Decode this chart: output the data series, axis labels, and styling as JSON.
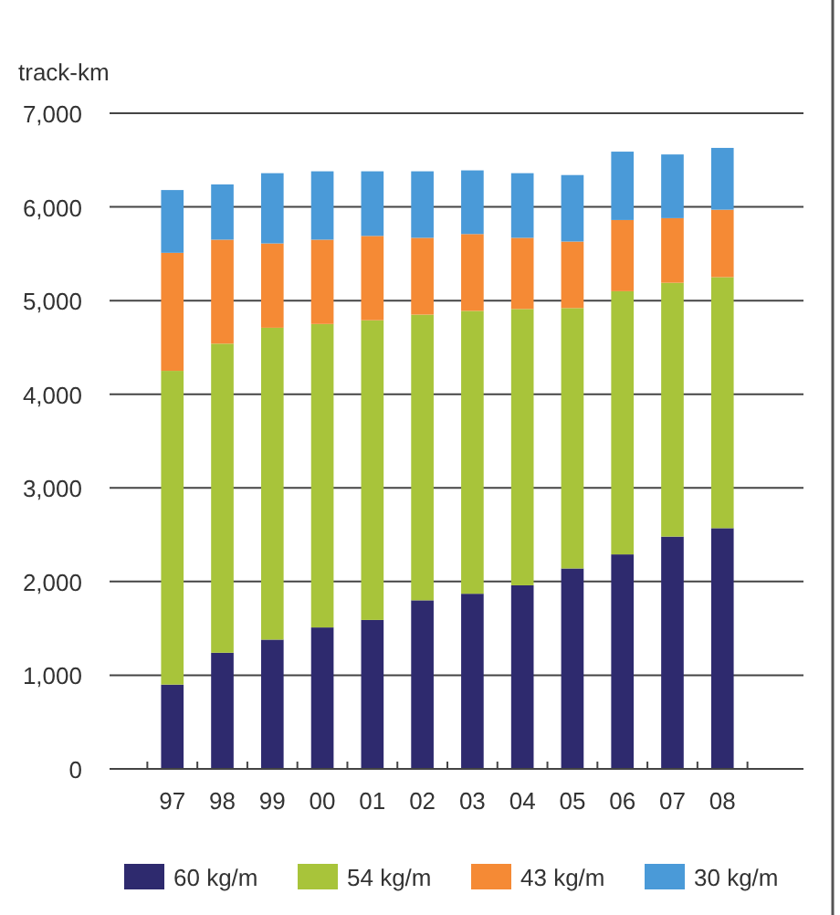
{
  "chart_data": {
    "type": "bar",
    "stacked": true,
    "ylabel": "track-km",
    "categories": [
      "97",
      "98",
      "99",
      "00",
      "01",
      "02",
      "03",
      "04",
      "05",
      "06",
      "07",
      "08"
    ],
    "series": [
      {
        "name": "60 kg/m",
        "color": "#2e2a6e",
        "values": [
          900,
          1240,
          1380,
          1510,
          1590,
          1800,
          1870,
          1960,
          2140,
          2290,
          2480,
          2570
        ]
      },
      {
        "name": "54 kg/m",
        "color": "#a8c43a",
        "values": [
          3350,
          3300,
          3330,
          3240,
          3200,
          3050,
          3020,
          2950,
          2780,
          2810,
          2710,
          2680
        ]
      },
      {
        "name": "43 kg/m",
        "color": "#f58a35",
        "values": [
          1260,
          1110,
          900,
          900,
          900,
          820,
          820,
          760,
          710,
          760,
          690,
          720
        ]
      },
      {
        "name": "30 kg/m",
        "color": "#4a9ad8",
        "values": [
          670,
          590,
          750,
          730,
          690,
          710,
          680,
          690,
          710,
          730,
          680,
          660
        ]
      }
    ],
    "ylim": [
      0,
      7000
    ],
    "yticks": [
      {
        "value": 0,
        "label": "0"
      },
      {
        "value": 1000,
        "label": "1,000"
      },
      {
        "value": 2000,
        "label": "2,000"
      },
      {
        "value": 3000,
        "label": "3,000"
      },
      {
        "value": 4000,
        "label": "4,000"
      },
      {
        "value": 5000,
        "label": "5,000"
      },
      {
        "value": 6000,
        "label": "6,000"
      },
      {
        "value": 7000,
        "label": "7,000"
      }
    ],
    "grid": "y",
    "legend": "bottom"
  }
}
